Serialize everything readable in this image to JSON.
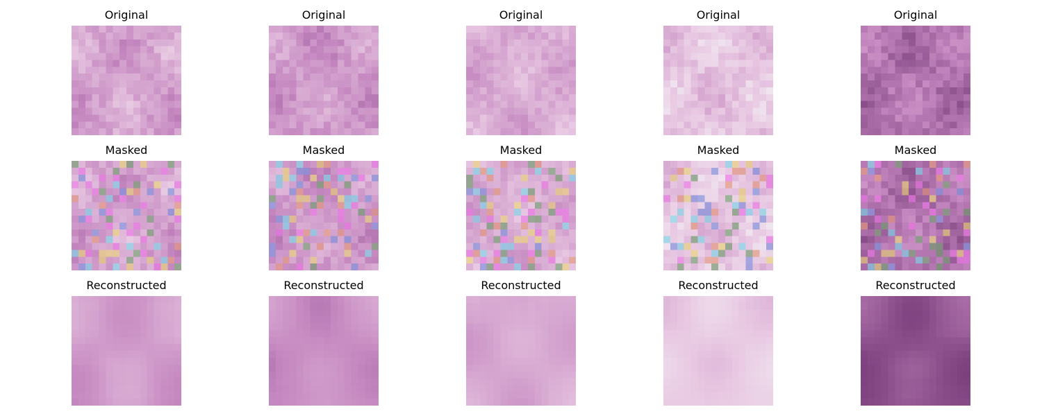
{
  "figure": {
    "row_titles": [
      "Original",
      "Masked",
      "Reconstructed"
    ],
    "columns": [
      {
        "original": "Original",
        "masked": "Masked",
        "reconstructed": "Reconstructed"
      },
      {
        "original": "Original",
        "masked": "Masked",
        "reconstructed": "Reconstructed"
      },
      {
        "original": "Original",
        "masked": "Masked",
        "reconstructed": "Reconstructed"
      },
      {
        "original": "Original",
        "masked": "Masked",
        "reconstructed": "Reconstructed"
      },
      {
        "original": "Original",
        "masked": "Masked",
        "reconstructed": "Reconstructed"
      }
    ]
  },
  "colors": {
    "background": "#ffffff",
    "text": "#000000",
    "tissue_light": "#e8c8e2",
    "tissue_mid": "#c486bf",
    "tissue_dark": "#7a3f7c",
    "tissue_darkest": "#4d2a4d",
    "mask_cyan": "#7fd6e8",
    "mask_yellow": "#ead57a",
    "mask_blue": "#7f93dd",
    "mask_green": "#72a06f",
    "mask_orange": "#e3977b",
    "mask_magenta": "#ec78e6"
  }
}
